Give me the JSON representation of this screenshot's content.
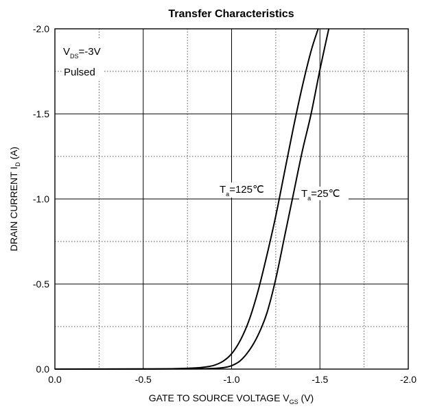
{
  "chart_data": {
    "type": "line",
    "title": "Transfer Characteristics",
    "xlabel": {
      "main": "GATE TO SOURCE VOLTAGE V",
      "sub": "GS",
      "unit": " (V)"
    },
    "ylabel": {
      "main": "DRAIN CURRENT I",
      "sub": "D",
      "unit": " (A)"
    },
    "xlim": [
      0.0,
      -2.0
    ],
    "ylim": [
      0.0,
      -2.0
    ],
    "x_ticks": [
      0.0,
      -0.5,
      -1.0,
      -1.5,
      -2.0
    ],
    "x_tick_labels": [
      "0.0",
      "-0.5",
      "-1.0",
      "-1.5",
      "-2.0"
    ],
    "y_ticks": [
      0.0,
      -0.5,
      -1.0,
      -1.5,
      -2.0
    ],
    "y_tick_labels": [
      "0.0",
      "-0.5",
      "-1.0",
      "-1.5",
      "-2.0"
    ],
    "minor_grid": true,
    "grid": true,
    "conditions": [
      {
        "main": "V",
        "sub": "DS",
        "rest": "=-3V"
      },
      {
        "text": "Pulsed"
      }
    ],
    "series": [
      {
        "name": {
          "main": "T",
          "sub": "a",
          "rest": "=125℃"
        },
        "x": [
          0.0,
          -0.5,
          -0.7,
          -0.8,
          -0.85,
          -0.9,
          -0.95,
          -1.0,
          -1.05,
          -1.1,
          -1.15,
          -1.2,
          -1.25,
          -1.3,
          -1.35,
          -1.4,
          -1.45,
          -1.49
        ],
        "y": [
          0.0,
          -0.001,
          -0.003,
          -0.007,
          -0.012,
          -0.022,
          -0.045,
          -0.09,
          -0.17,
          -0.29,
          -0.46,
          -0.67,
          -0.9,
          -1.16,
          -1.42,
          -1.66,
          -1.87,
          -2.0
        ]
      },
      {
        "name": {
          "main": "T",
          "sub": "a",
          "rest": "=25℃"
        },
        "x": [
          0.0,
          -0.5,
          -0.8,
          -0.9,
          -0.95,
          -1.0,
          -1.05,
          -1.1,
          -1.15,
          -1.2,
          -1.25,
          -1.3,
          -1.35,
          -1.4,
          -1.45,
          -1.5,
          -1.55
        ],
        "y": [
          0.0,
          -0.0005,
          -0.0015,
          -0.004,
          -0.008,
          -0.02,
          -0.05,
          -0.11,
          -0.2,
          -0.33,
          -0.53,
          -0.78,
          -1.03,
          -1.28,
          -1.5,
          -1.76,
          -2.0
        ]
      }
    ]
  }
}
